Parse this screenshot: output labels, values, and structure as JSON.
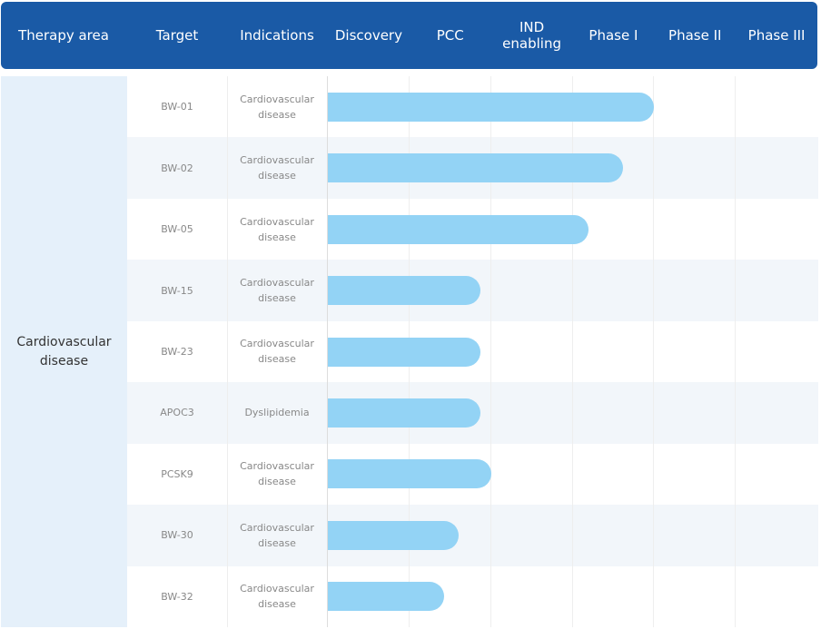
{
  "chart_data": {
    "type": "bar",
    "columns": {
      "therapy_area": "Therapy area",
      "target": "Target",
      "indications": "Indications"
    },
    "stages": [
      "Discovery",
      "PCC",
      "IND enabling",
      "Phase I",
      "Phase II",
      "Phase III"
    ],
    "therapy_area": "Cardiovascular disease",
    "categories": [
      "BW-01",
      "BW-02",
      "BW-05",
      "BW-15",
      "BW-23",
      "APOC3",
      "PCSK9",
      "BW-30",
      "BW-32"
    ],
    "indications": [
      "Cardiovascular disease",
      "Cardiovascular disease",
      "Cardiovascular disease",
      "Cardiovascular disease",
      "Cardiovascular disease",
      "Dyslipidemia",
      "Cardiovascular disease",
      "Cardiovascular disease",
      "Cardiovascular disease"
    ],
    "values": [
      4.0,
      3.62,
      3.2,
      1.87,
      1.87,
      1.87,
      2.0,
      1.6,
      1.42
    ],
    "color": "#93d3f5",
    "xlim": [
      0,
      6
    ]
  }
}
